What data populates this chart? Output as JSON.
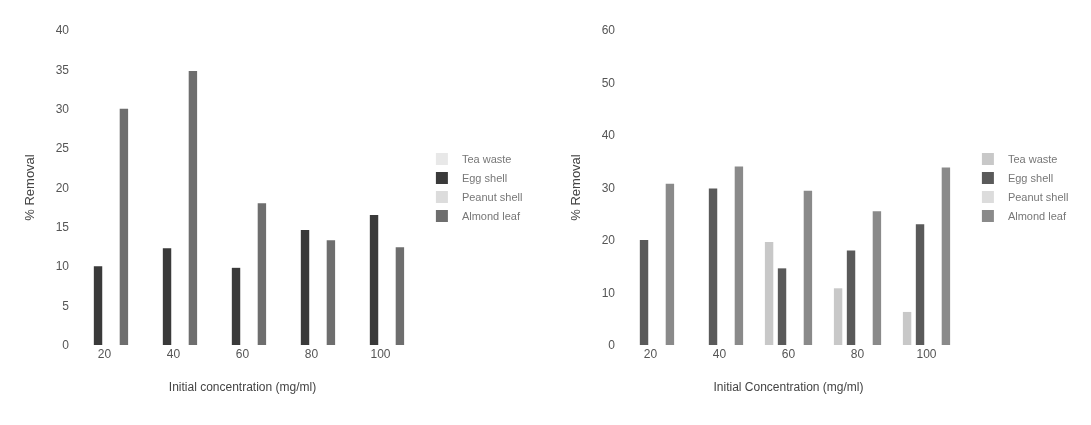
{
  "chart_data": [
    {
      "type": "bar",
      "xlabel": "Initial concentration (mg/ml)",
      "ylabel": "% Removal",
      "categories": [
        "20",
        "40",
        "60",
        "80",
        "100"
      ],
      "series": [
        {
          "name": "Tea waste",
          "color": "#e8e8e8",
          "values": [
            null,
            null,
            null,
            null,
            null
          ]
        },
        {
          "name": "Egg shell",
          "color": "#3a3a3a",
          "values": [
            10,
            12.3,
            9.8,
            14.6,
            16.5
          ]
        },
        {
          "name": "Peanut shell",
          "color": "#dcdcdc",
          "values": [
            null,
            null,
            null,
            null,
            null
          ]
        },
        {
          "name": "Almond leaf",
          "color": "#6e6e6e",
          "values": [
            30,
            34.8,
            18,
            13.3,
            12.4
          ]
        }
      ],
      "ylim": [
        0,
        40
      ],
      "yticks": [
        0,
        5,
        10,
        15,
        20,
        25,
        30,
        35,
        40
      ],
      "grid": false,
      "legend": "right"
    },
    {
      "type": "bar",
      "xlabel": "Initial Concentration (mg/ml)",
      "ylabel": "% Removal",
      "categories": [
        "20",
        "40",
        "60",
        "80",
        "100"
      ],
      "series": [
        {
          "name": "Tea waste",
          "color": "#c8c8c8",
          "values": [
            null,
            null,
            19.6,
            10.8,
            6.3
          ]
        },
        {
          "name": "Egg shell",
          "color": "#5a5a5a",
          "values": [
            20,
            29.8,
            14.6,
            18,
            23
          ]
        },
        {
          "name": "Peanut shell",
          "color": "#dcdcdc",
          "values": [
            null,
            null,
            null,
            null,
            null
          ]
        },
        {
          "name": "Almond leaf",
          "color": "#8a8a8a",
          "values": [
            30.7,
            34,
            29.4,
            25.5,
            33.8
          ]
        }
      ],
      "ylim": [
        0,
        60
      ],
      "yticks": [
        0,
        10,
        20,
        30,
        40,
        50,
        60
      ],
      "grid": false,
      "legend": "right"
    }
  ]
}
